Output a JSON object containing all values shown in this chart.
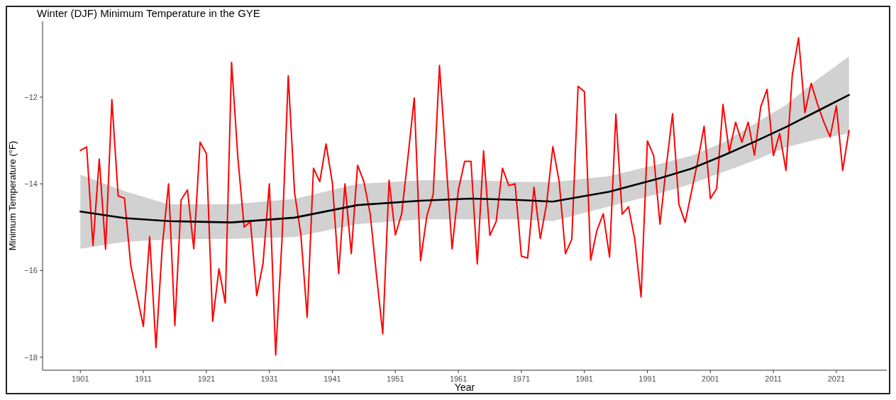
{
  "chart_data": {
    "type": "line",
    "title": "Winter (DJF) Minimum Temperature in the GYE",
    "xlabel": "Year",
    "ylabel": "Minimum Temperature (°F)",
    "x": [
      1901,
      1902,
      1903,
      1904,
      1905,
      1906,
      1907,
      1908,
      1909,
      1910,
      1911,
      1912,
      1913,
      1914,
      1915,
      1916,
      1917,
      1918,
      1919,
      1920,
      1921,
      1922,
      1923,
      1924,
      1925,
      1926,
      1927,
      1928,
      1929,
      1930,
      1931,
      1932,
      1933,
      1934,
      1935,
      1936,
      1937,
      1938,
      1939,
      1940,
      1941,
      1942,
      1943,
      1944,
      1945,
      1946,
      1947,
      1948,
      1949,
      1950,
      1951,
      1952,
      1953,
      1954,
      1955,
      1956,
      1957,
      1958,
      1959,
      1960,
      1961,
      1962,
      1963,
      1964,
      1965,
      1966,
      1967,
      1968,
      1969,
      1970,
      1971,
      1972,
      1973,
      1974,
      1975,
      1976,
      1977,
      1978,
      1979,
      1980,
      1981,
      1982,
      1983,
      1984,
      1985,
      1986,
      1987,
      1988,
      1989,
      1990,
      1991,
      1992,
      1993,
      1994,
      1995,
      1996,
      1997,
      1998,
      1999,
      2000,
      2001,
      2002,
      2003,
      2004,
      2005,
      2006,
      2007,
      2008,
      2009,
      2010,
      2011,
      2012,
      2013,
      2014,
      2015,
      2016,
      2017,
      2018,
      2019,
      2020,
      2021,
      2022,
      2023
    ],
    "series": [
      {
        "color": "#ff0000",
        "values": [
          -13.23,
          -13.15,
          -15.42,
          -13.43,
          -15.51,
          -12.06,
          -14.28,
          -14.33,
          -15.88,
          -16.58,
          -17.29,
          -15.22,
          -17.78,
          -15.44,
          -14.0,
          -17.27,
          -14.37,
          -14.14,
          -15.5,
          -13.04,
          -13.3,
          -17.17,
          -15.96,
          -16.75,
          -11.2,
          -13.4,
          -15.0,
          -14.87,
          -16.58,
          -15.83,
          -14.0,
          -17.95,
          -15.3,
          -11.51,
          -14.2,
          -15.17,
          -17.08,
          -13.64,
          -13.95,
          -13.08,
          -13.98,
          -16.07,
          -14.0,
          -15.61,
          -13.57,
          -13.95,
          -14.69,
          -16.1,
          -17.46,
          -13.92,
          -15.18,
          -14.69,
          -13.38,
          -12.02,
          -15.77,
          -14.74,
          -14.25,
          -11.27,
          -13.38,
          -15.5,
          -14.14,
          -13.48,
          -13.48,
          -15.85,
          -13.24,
          -15.19,
          -14.87,
          -13.64,
          -14.04,
          -14.0,
          -15.67,
          -15.71,
          -14.08,
          -15.26,
          -14.47,
          -13.14,
          -13.95,
          -15.61,
          -15.28,
          -11.75,
          -11.87,
          -15.76,
          -15.07,
          -14.69,
          -15.69,
          -12.39,
          -14.7,
          -14.53,
          -15.28,
          -16.61,
          -13.01,
          -13.35,
          -14.93,
          -13.6,
          -12.38,
          -14.47,
          -14.89,
          -14.18,
          -13.48,
          -12.67,
          -14.34,
          -14.11,
          -12.17,
          -13.27,
          -12.58,
          -13.04,
          -12.58,
          -13.34,
          -12.22,
          -11.82,
          -13.35,
          -12.84,
          -13.69,
          -11.49,
          -10.63,
          -12.36,
          -11.68,
          -12.16,
          -12.57,
          -12.92,
          -12.2,
          -13.69,
          -12.77
        ]
      },
      {
        "type": "line",
        "color": "#000000",
        "x": [
          1901,
          1908,
          1915,
          1925,
          1935,
          1945,
          1955,
          1963,
          1970,
          1976,
          1985,
          1993,
          1998,
          2003,
          2008,
          2013,
          2018,
          2023
        ],
        "values": [
          -14.64,
          -14.79,
          -14.86,
          -14.89,
          -14.78,
          -14.49,
          -14.39,
          -14.34,
          -14.37,
          -14.41,
          -14.18,
          -13.87,
          -13.65,
          -13.35,
          -13.03,
          -12.69,
          -12.32,
          -11.95
        ],
        "lower": [
          -15.5,
          -15.34,
          -15.28,
          -15.27,
          -15.23,
          -14.93,
          -14.82,
          -14.82,
          -14.82,
          -14.86,
          -14.52,
          -14.22,
          -14.0,
          -13.73,
          -13.46,
          -13.16,
          -12.97,
          -12.84
        ],
        "upper": [
          -13.79,
          -14.17,
          -14.47,
          -14.47,
          -14.35,
          -14.0,
          -13.92,
          -13.91,
          -13.95,
          -13.96,
          -13.82,
          -13.54,
          -13.35,
          -13.05,
          -12.62,
          -12.18,
          -11.59,
          -11.06
        ]
      }
    ],
    "xlim": [
      1895,
      2029
    ],
    "xticks": [
      1901,
      1911,
      1921,
      1931,
      1941,
      1951,
      1961,
      1971,
      1981,
      1991,
      2001,
      2011,
      2021
    ],
    "ylim": [
      -18.3,
      -10.25
    ],
    "yticks": [
      -18,
      -16,
      -14,
      -12
    ]
  }
}
